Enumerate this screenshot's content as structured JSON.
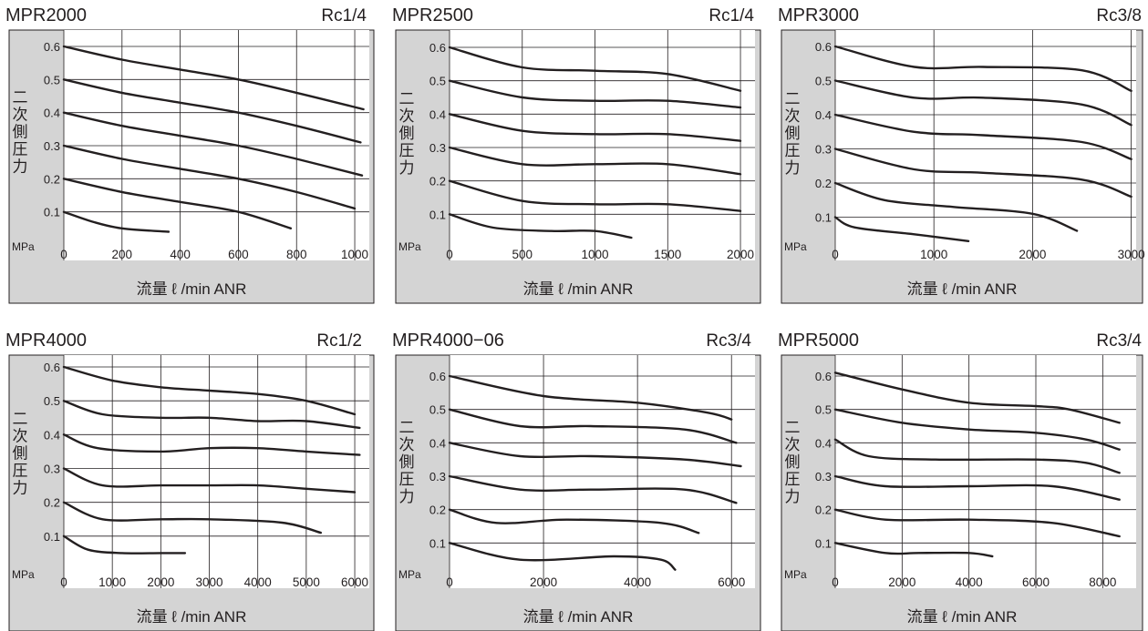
{
  "common": {
    "ylabel": "二次側圧力",
    "yunit": "MPa",
    "xlabel": "流量 ℓ /min ANR",
    "ytick_labels": [
      "0.1",
      "0.2",
      "0.3",
      "0.4",
      "0.5",
      "0.6"
    ]
  },
  "colors": {
    "panel_bg": "#d4d4d4",
    "plot_bg": "#ffffff",
    "line": "#231f20",
    "grid": "#231f20"
  },
  "chart_data": [
    {
      "type": "line",
      "title": "MPR2000",
      "port": "Rc1/4",
      "xlabel": "流量 ℓ /min ANR",
      "ylabel": "二次側圧力",
      "yunit": "MPa",
      "xlim": [
        0,
        1050
      ],
      "ylim": [
        0,
        0.65
      ],
      "xticks": [
        0,
        200,
        400,
        600,
        800,
        1000
      ],
      "yticks": [
        0.1,
        0.2,
        0.3,
        0.4,
        0.5,
        0.6
      ],
      "grid": true,
      "series": [
        {
          "points": [
            [
              0,
              0.6
            ],
            [
              200,
              0.56
            ],
            [
              400,
              0.53
            ],
            [
              600,
              0.5
            ],
            [
              800,
              0.46
            ],
            [
              1030,
              0.41
            ]
          ]
        },
        {
          "points": [
            [
              0,
              0.5
            ],
            [
              200,
              0.46
            ],
            [
              400,
              0.43
            ],
            [
              600,
              0.4
            ],
            [
              800,
              0.36
            ],
            [
              1020,
              0.31
            ]
          ]
        },
        {
          "points": [
            [
              0,
              0.4
            ],
            [
              200,
              0.36
            ],
            [
              400,
              0.33
            ],
            [
              600,
              0.3
            ],
            [
              800,
              0.26
            ],
            [
              1025,
              0.21
            ]
          ]
        },
        {
          "points": [
            [
              0,
              0.3
            ],
            [
              200,
              0.26
            ],
            [
              400,
              0.23
            ],
            [
              600,
              0.2
            ],
            [
              800,
              0.16
            ],
            [
              1000,
              0.11
            ]
          ]
        },
        {
          "points": [
            [
              0,
              0.2
            ],
            [
              200,
              0.16
            ],
            [
              400,
              0.13
            ],
            [
              600,
              0.1
            ],
            [
              780,
              0.05
            ]
          ]
        },
        {
          "points": [
            [
              0,
              0.1
            ],
            [
              100,
              0.07
            ],
            [
              200,
              0.05
            ],
            [
              360,
              0.04
            ]
          ]
        }
      ]
    },
    {
      "type": "line",
      "title": "MPR2500",
      "port": "Rc1/4",
      "xlabel": "流量 ℓ /min ANR",
      "ylabel": "二次側圧力",
      "yunit": "MPa",
      "xlim": [
        0,
        2100
      ],
      "ylim": [
        0,
        0.65
      ],
      "xticks": [
        0,
        500,
        1000,
        1500,
        2000
      ],
      "yticks": [
        0.1,
        0.2,
        0.3,
        0.4,
        0.5,
        0.6
      ],
      "grid": true,
      "series": [
        {
          "points": [
            [
              0,
              0.6
            ],
            [
              500,
              0.54
            ],
            [
              1000,
              0.53
            ],
            [
              1500,
              0.52
            ],
            [
              2000,
              0.47
            ]
          ]
        },
        {
          "points": [
            [
              0,
              0.5
            ],
            [
              500,
              0.45
            ],
            [
              1000,
              0.44
            ],
            [
              1500,
              0.44
            ],
            [
              2000,
              0.42
            ]
          ]
        },
        {
          "points": [
            [
              0,
              0.4
            ],
            [
              500,
              0.35
            ],
            [
              1000,
              0.34
            ],
            [
              1500,
              0.34
            ],
            [
              2000,
              0.32
            ]
          ]
        },
        {
          "points": [
            [
              0,
              0.3
            ],
            [
              500,
              0.25
            ],
            [
              1000,
              0.25
            ],
            [
              1500,
              0.25
            ],
            [
              2000,
              0.22
            ]
          ]
        },
        {
          "points": [
            [
              0,
              0.2
            ],
            [
              500,
              0.14
            ],
            [
              1000,
              0.13
            ],
            [
              1500,
              0.13
            ],
            [
              2000,
              0.11
            ]
          ]
        },
        {
          "points": [
            [
              0,
              0.1
            ],
            [
              300,
              0.06
            ],
            [
              700,
              0.05
            ],
            [
              1000,
              0.05
            ],
            [
              1250,
              0.03
            ]
          ]
        }
      ]
    },
    {
      "type": "line",
      "title": "MPR3000",
      "port": "Rc3/8",
      "xlabel": "流量 ℓ /min ANR",
      "ylabel": "二次側圧力",
      "yunit": "MPa",
      "xlim": [
        0,
        3050
      ],
      "ylim": [
        0,
        0.65
      ],
      "xticks": [
        0,
        1000,
        2000,
        3000
      ],
      "yticks": [
        0.1,
        0.2,
        0.3,
        0.4,
        0.5,
        0.6
      ],
      "grid": true,
      "series": [
        {
          "points": [
            [
              0,
              0.6
            ],
            [
              800,
              0.54
            ],
            [
              1500,
              0.54
            ],
            [
              2500,
              0.53
            ],
            [
              3000,
              0.47
            ]
          ]
        },
        {
          "points": [
            [
              0,
              0.5
            ],
            [
              800,
              0.45
            ],
            [
              1500,
              0.45
            ],
            [
              2500,
              0.43
            ],
            [
              3000,
              0.37
            ]
          ]
        },
        {
          "points": [
            [
              0,
              0.4
            ],
            [
              800,
              0.35
            ],
            [
              1500,
              0.34
            ],
            [
              2500,
              0.32
            ],
            [
              3000,
              0.27
            ]
          ]
        },
        {
          "points": [
            [
              0,
              0.3
            ],
            [
              800,
              0.24
            ],
            [
              1500,
              0.23
            ],
            [
              2500,
              0.21
            ],
            [
              3000,
              0.16
            ]
          ]
        },
        {
          "points": [
            [
              0,
              0.2
            ],
            [
              500,
              0.15
            ],
            [
              1200,
              0.13
            ],
            [
              2000,
              0.11
            ],
            [
              2450,
              0.06
            ]
          ]
        },
        {
          "points": [
            [
              0,
              0.1
            ],
            [
              200,
              0.07
            ],
            [
              800,
              0.05
            ],
            [
              1350,
              0.03
            ]
          ]
        }
      ]
    },
    {
      "type": "line",
      "title": "MPR4000",
      "port": "Rc1/2",
      "xlabel": "流量 ℓ /min ANR",
      "ylabel": "二次側圧力",
      "yunit": "MPa",
      "xlim": [
        0,
        6300
      ],
      "ylim": [
        0,
        0.65
      ],
      "xticks": [
        0,
        1000,
        2000,
        3000,
        4000,
        5000,
        6000
      ],
      "yticks": [
        0.1,
        0.2,
        0.3,
        0.4,
        0.5,
        0.6
      ],
      "grid": true,
      "series": [
        {
          "points": [
            [
              0,
              0.6
            ],
            [
              1000,
              0.56
            ],
            [
              2000,
              0.54
            ],
            [
              3000,
              0.53
            ],
            [
              4000,
              0.52
            ],
            [
              5000,
              0.5
            ],
            [
              6000,
              0.46
            ]
          ]
        },
        {
          "points": [
            [
              0,
              0.5
            ],
            [
              800,
              0.46
            ],
            [
              2000,
              0.45
            ],
            [
              3000,
              0.45
            ],
            [
              4000,
              0.44
            ],
            [
              5000,
              0.44
            ],
            [
              6100,
              0.42
            ]
          ]
        },
        {
          "points": [
            [
              0,
              0.4
            ],
            [
              700,
              0.36
            ],
            [
              2000,
              0.35
            ],
            [
              3000,
              0.36
            ],
            [
              4000,
              0.36
            ],
            [
              5000,
              0.35
            ],
            [
              6100,
              0.34
            ]
          ]
        },
        {
          "points": [
            [
              0,
              0.3
            ],
            [
              800,
              0.25
            ],
            [
              2000,
              0.25
            ],
            [
              3000,
              0.25
            ],
            [
              4000,
              0.25
            ],
            [
              5000,
              0.24
            ],
            [
              6000,
              0.23
            ]
          ]
        },
        {
          "points": [
            [
              0,
              0.2
            ],
            [
              800,
              0.15
            ],
            [
              2000,
              0.15
            ],
            [
              3000,
              0.15
            ],
            [
              4500,
              0.14
            ],
            [
              5300,
              0.11
            ]
          ]
        },
        {
          "points": [
            [
              0,
              0.1
            ],
            [
              500,
              0.06
            ],
            [
              1200,
              0.05
            ],
            [
              2000,
              0.05
            ],
            [
              2500,
              0.05
            ]
          ]
        }
      ]
    },
    {
      "type": "line",
      "title": "MPR4000−06",
      "port": "Rc3/4",
      "xlabel": "流量 ℓ /min ANR",
      "ylabel": "二次側圧力",
      "yunit": "MPa",
      "xlim": [
        0,
        6500
      ],
      "ylim": [
        0,
        0.65
      ],
      "xticks": [
        0,
        2000,
        4000,
        6000
      ],
      "yticks": [
        0.1,
        0.2,
        0.3,
        0.4,
        0.5,
        0.6
      ],
      "grid": true,
      "series": [
        {
          "points": [
            [
              0,
              0.6
            ],
            [
              2000,
              0.54
            ],
            [
              4000,
              0.52
            ],
            [
              5500,
              0.49
            ],
            [
              6000,
              0.47
            ]
          ]
        },
        {
          "points": [
            [
              0,
              0.5
            ],
            [
              1500,
              0.45
            ],
            [
              3000,
              0.45
            ],
            [
              5000,
              0.44
            ],
            [
              6100,
              0.4
            ]
          ]
        },
        {
          "points": [
            [
              0,
              0.4
            ],
            [
              1500,
              0.36
            ],
            [
              3000,
              0.36
            ],
            [
              5000,
              0.35
            ],
            [
              6200,
              0.33
            ]
          ]
        },
        {
          "points": [
            [
              0,
              0.3
            ],
            [
              1500,
              0.26
            ],
            [
              3000,
              0.26
            ],
            [
              5000,
              0.26
            ],
            [
              6100,
              0.22
            ]
          ]
        },
        {
          "points": [
            [
              0,
              0.2
            ],
            [
              1000,
              0.16
            ],
            [
              2500,
              0.17
            ],
            [
              4500,
              0.16
            ],
            [
              5300,
              0.13
            ]
          ]
        },
        {
          "points": [
            [
              0,
              0.1
            ],
            [
              1500,
              0.05
            ],
            [
              3500,
              0.06
            ],
            [
              4500,
              0.05
            ],
            [
              4800,
              0.02
            ]
          ]
        }
      ]
    },
    {
      "type": "line",
      "title": "MPR5000",
      "port": "Rc3/4",
      "xlabel": "流量 ℓ /min ANR",
      "ylabel": "二次側圧力",
      "yunit": "MPa",
      "xlim": [
        0,
        9000
      ],
      "ylim": [
        0,
        0.65
      ],
      "xticks": [
        0,
        2000,
        4000,
        6000,
        8000
      ],
      "yticks": [
        0.1,
        0.2,
        0.3,
        0.4,
        0.5,
        0.6
      ],
      "grid": true,
      "series": [
        {
          "points": [
            [
              0,
              0.61
            ],
            [
              2000,
              0.56
            ],
            [
              4000,
              0.52
            ],
            [
              6000,
              0.51
            ],
            [
              7000,
              0.5
            ],
            [
              8500,
              0.46
            ]
          ]
        },
        {
          "points": [
            [
              0,
              0.5
            ],
            [
              2000,
              0.46
            ],
            [
              4000,
              0.44
            ],
            [
              6000,
              0.43
            ],
            [
              7500,
              0.41
            ],
            [
              8500,
              0.38
            ]
          ]
        },
        {
          "points": [
            [
              0,
              0.41
            ],
            [
              1000,
              0.36
            ],
            [
              3000,
              0.35
            ],
            [
              6000,
              0.35
            ],
            [
              7500,
              0.34
            ],
            [
              8500,
              0.31
            ]
          ]
        },
        {
          "points": [
            [
              0,
              0.3
            ],
            [
              1500,
              0.27
            ],
            [
              4000,
              0.27
            ],
            [
              6500,
              0.27
            ],
            [
              8500,
              0.23
            ]
          ]
        },
        {
          "points": [
            [
              0,
              0.2
            ],
            [
              1500,
              0.17
            ],
            [
              4000,
              0.17
            ],
            [
              6500,
              0.16
            ],
            [
              8500,
              0.12
            ]
          ]
        },
        {
          "points": [
            [
              0,
              0.1
            ],
            [
              1500,
              0.07
            ],
            [
              2500,
              0.07
            ],
            [
              4000,
              0.07
            ],
            [
              4700,
              0.06
            ]
          ]
        }
      ]
    }
  ]
}
